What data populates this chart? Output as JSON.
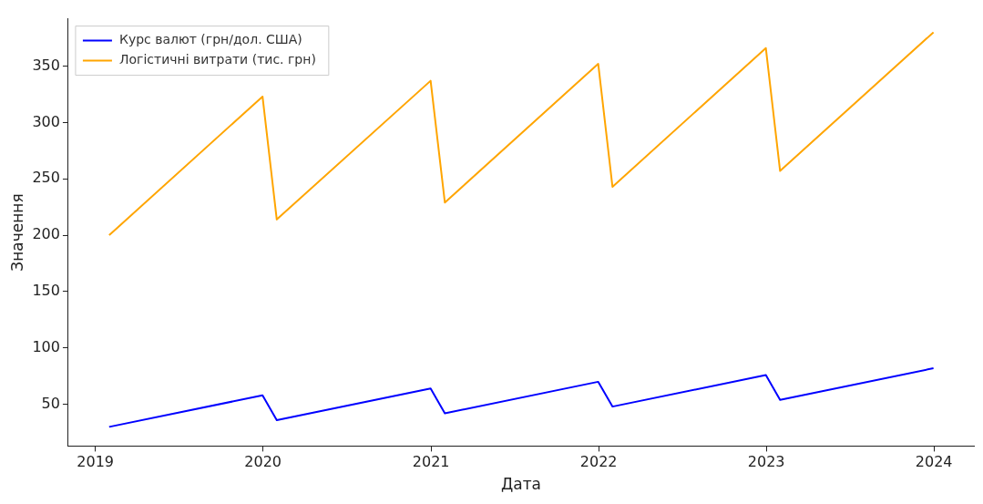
{
  "chart_data": {
    "type": "line",
    "xlabel": "Дата",
    "ylabel": "Значення",
    "x": [
      "2019-01-31",
      "2019-12-31",
      "2020-01-31",
      "2020-12-31",
      "2021-01-31",
      "2021-12-31",
      "2022-01-31",
      "2022-12-31",
      "2023-01-31",
      "2023-12-31"
    ],
    "series": [
      {
        "name": "Курс валют (грн/дол. США)",
        "color": "#0000ff",
        "values": [
          30,
          58,
          36,
          64,
          42,
          70,
          48,
          76,
          54,
          82
        ]
      },
      {
        "name": "Логістичні витрати (тис. грн)",
        "color": "#ffa500",
        "values": [
          200,
          323,
          214,
          337,
          229,
          352,
          243,
          366,
          257,
          380
        ]
      }
    ],
    "xlim": [
      "2018-11-03",
      "2024-03-28"
    ],
    "xticks": [
      "2019",
      "2020",
      "2021",
      "2022",
      "2023",
      "2024"
    ],
    "ylim": [
      13,
      392
    ],
    "yticks": [
      50,
      100,
      150,
      200,
      250,
      300,
      350
    ],
    "grid": false,
    "legend": "top left",
    "marker": "none",
    "line_style": "solid"
  }
}
